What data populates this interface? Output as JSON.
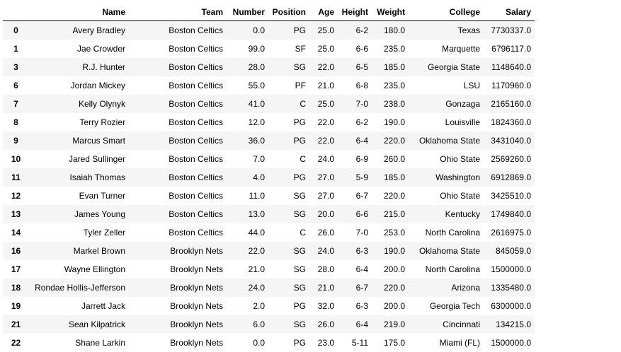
{
  "table": {
    "columns": [
      "Name",
      "Team",
      "Number",
      "Position",
      "Age",
      "Height",
      "Weight",
      "College",
      "Salary"
    ],
    "rows": [
      {
        "index": "0",
        "cells": [
          "Avery Bradley",
          "Boston Celtics",
          "0.0",
          "PG",
          "25.0",
          "6-2",
          "180.0",
          "Texas",
          "7730337.0"
        ]
      },
      {
        "index": "1",
        "cells": [
          "Jae Crowder",
          "Boston Celtics",
          "99.0",
          "SF",
          "25.0",
          "6-6",
          "235.0",
          "Marquette",
          "6796117.0"
        ]
      },
      {
        "index": "3",
        "cells": [
          "R.J. Hunter",
          "Boston Celtics",
          "28.0",
          "SG",
          "22.0",
          "6-5",
          "185.0",
          "Georgia State",
          "1148640.0"
        ]
      },
      {
        "index": "6",
        "cells": [
          "Jordan Mickey",
          "Boston Celtics",
          "55.0",
          "PF",
          "21.0",
          "6-8",
          "235.0",
          "LSU",
          "1170960.0"
        ]
      },
      {
        "index": "7",
        "cells": [
          "Kelly Olynyk",
          "Boston Celtics",
          "41.0",
          "C",
          "25.0",
          "7-0",
          "238.0",
          "Gonzaga",
          "2165160.0"
        ]
      },
      {
        "index": "8",
        "cells": [
          "Terry Rozier",
          "Boston Celtics",
          "12.0",
          "PG",
          "22.0",
          "6-2",
          "190.0",
          "Louisville",
          "1824360.0"
        ]
      },
      {
        "index": "9",
        "cells": [
          "Marcus Smart",
          "Boston Celtics",
          "36.0",
          "PG",
          "22.0",
          "6-4",
          "220.0",
          "Oklahoma State",
          "3431040.0"
        ]
      },
      {
        "index": "10",
        "cells": [
          "Jared Sullinger",
          "Boston Celtics",
          "7.0",
          "C",
          "24.0",
          "6-9",
          "260.0",
          "Ohio State",
          "2569260.0"
        ]
      },
      {
        "index": "11",
        "cells": [
          "Isaiah Thomas",
          "Boston Celtics",
          "4.0",
          "PG",
          "27.0",
          "5-9",
          "185.0",
          "Washington",
          "6912869.0"
        ]
      },
      {
        "index": "12",
        "cells": [
          "Evan Turner",
          "Boston Celtics",
          "11.0",
          "SG",
          "27.0",
          "6-7",
          "220.0",
          "Ohio State",
          "3425510.0"
        ]
      },
      {
        "index": "13",
        "cells": [
          "James Young",
          "Boston Celtics",
          "13.0",
          "SG",
          "20.0",
          "6-6",
          "215.0",
          "Kentucky",
          "1749840.0"
        ]
      },
      {
        "index": "14",
        "cells": [
          "Tyler Zeller",
          "Boston Celtics",
          "44.0",
          "C",
          "26.0",
          "7-0",
          "253.0",
          "North Carolina",
          "2616975.0"
        ]
      },
      {
        "index": "16",
        "cells": [
          "Markel Brown",
          "Brooklyn Nets",
          "22.0",
          "SG",
          "24.0",
          "6-3",
          "190.0",
          "Oklahoma State",
          "845059.0"
        ]
      },
      {
        "index": "17",
        "cells": [
          "Wayne Ellington",
          "Brooklyn Nets",
          "21.0",
          "SG",
          "28.0",
          "6-4",
          "200.0",
          "North Carolina",
          "1500000.0"
        ]
      },
      {
        "index": "18",
        "cells": [
          "Rondae Hollis-Jefferson",
          "Brooklyn Nets",
          "24.0",
          "SG",
          "21.0",
          "6-7",
          "220.0",
          "Arizona",
          "1335480.0"
        ]
      },
      {
        "index": "19",
        "cells": [
          "Jarrett Jack",
          "Brooklyn Nets",
          "2.0",
          "PG",
          "32.0",
          "6-3",
          "200.0",
          "Georgia Tech",
          "6300000.0"
        ]
      },
      {
        "index": "21",
        "cells": [
          "Sean Kilpatrick",
          "Brooklyn Nets",
          "6.0",
          "SG",
          "26.0",
          "6-4",
          "219.0",
          "Cincinnati",
          "134215.0"
        ]
      },
      {
        "index": "22",
        "cells": [
          "Shane Larkin",
          "Brooklyn Nets",
          "0.0",
          "PG",
          "23.0",
          "5-11",
          "175.0",
          "Miami (FL)",
          "1500000.0"
        ]
      }
    ]
  }
}
